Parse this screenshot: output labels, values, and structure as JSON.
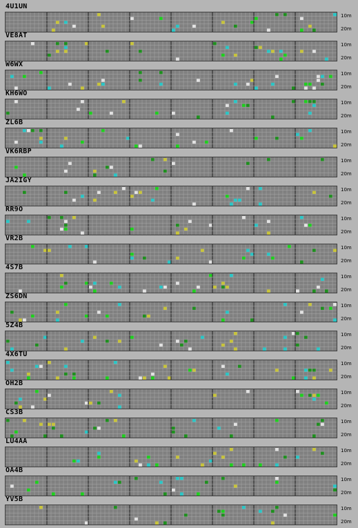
{
  "bands": {
    "top": "10m",
    "bottom": "20m"
  },
  "colors": {
    "grid_bg": "#808080",
    "grid_line": "#a8a8a8",
    "hour_divider": "#303030",
    "page_bg": "#b5b5b5",
    "green": "#1fcf1f",
    "yellow": "#c8c43a",
    "cyan": "#2ac6c6",
    "white": "#e2e2e2",
    "darkgreen": "#1f8f1f"
  },
  "stations": [
    {
      "call": "4U1UN"
    },
    {
      "call": "VE8AT"
    },
    {
      "call": "W6WX"
    },
    {
      "call": "KH6WO"
    },
    {
      "call": "ZL6B"
    },
    {
      "call": "VK6RBP"
    },
    {
      "call": "JA2IGY"
    },
    {
      "call": "RR9O"
    },
    {
      "call": "VR2B"
    },
    {
      "call": "4S7B"
    },
    {
      "call": "ZS6DN"
    },
    {
      "call": "5Z4B"
    },
    {
      "call": "4X6TU"
    },
    {
      "call": "OH2B"
    },
    {
      "call": "CS3B"
    },
    {
      "call": "LU4AA"
    },
    {
      "call": "OA4B"
    },
    {
      "call": "YV5B"
    }
  ]
}
